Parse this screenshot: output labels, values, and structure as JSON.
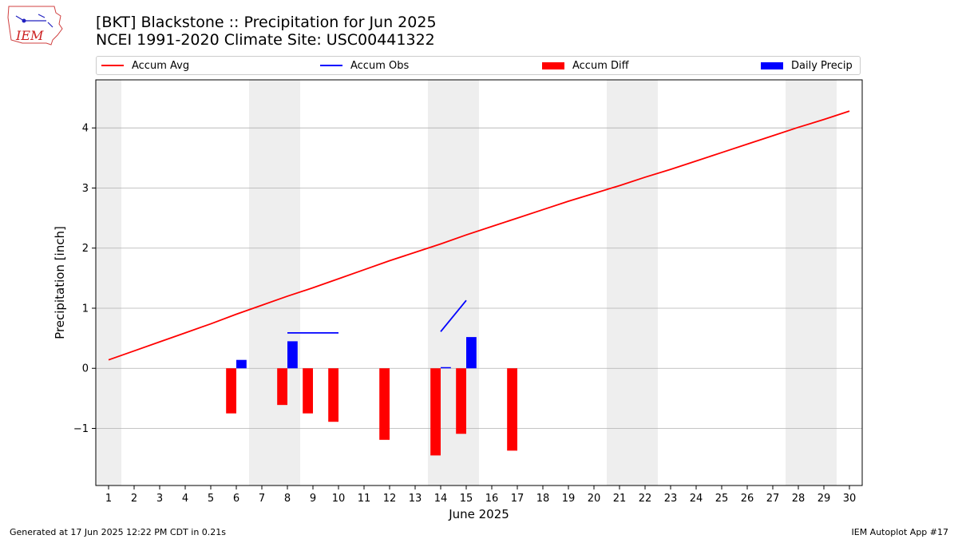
{
  "logo": {
    "text": "IEM"
  },
  "header": {
    "title_line1": "[BKT] Blackstone :: Precipitation for Jun 2025",
    "title_line2": "NCEI 1991-2020 Climate Site: USC00441322"
  },
  "legend": {
    "items": [
      {
        "label": "Accum Avg",
        "kind": "line",
        "color": "#ff0000"
      },
      {
        "label": "Accum Obs",
        "kind": "line",
        "color": "#0000ff"
      },
      {
        "label": "Accum Diff",
        "kind": "box",
        "color": "#ff0000"
      },
      {
        "label": "Daily Precip",
        "kind": "box",
        "color": "#0000ff"
      }
    ]
  },
  "footer": {
    "left": "Generated at 17 Jun 2025 12:22 PM CDT in 0.21s",
    "right": "IEM Autoplot App #17"
  },
  "chart_data": {
    "type": "bar",
    "title": "[BKT] Blackstone :: Precipitation for Jun 2025",
    "subtitle": "NCEI 1991-2020 Climate Site: USC00441322",
    "xlabel": "June 2025",
    "ylabel": "Precipitation [inch]",
    "xlim": [
      0.5,
      30.5
    ],
    "ylim": [
      -1.95,
      4.8
    ],
    "yticks": [
      -1,
      0,
      1,
      2,
      3,
      4
    ],
    "ytick_labels": [
      "−1",
      "0",
      "1",
      "2",
      "3",
      "4"
    ],
    "xticks": [
      1,
      2,
      3,
      4,
      5,
      6,
      7,
      8,
      9,
      10,
      11,
      12,
      13,
      14,
      15,
      16,
      17,
      18,
      19,
      20,
      21,
      22,
      23,
      24,
      25,
      26,
      27,
      28,
      29,
      30
    ],
    "grid": "horizontal",
    "legend_position": "top",
    "weekend_shading": [
      [
        0.5,
        1.5
      ],
      [
        6.5,
        8.5
      ],
      [
        13.5,
        15.5
      ],
      [
        20.5,
        22.5
      ],
      [
        27.5,
        29.5
      ]
    ],
    "colors": {
      "avg": "#ff0000",
      "obs": "#0000ff",
      "diff": "#ff0000",
      "precip": "#0000ff",
      "shade": "#eeeeee",
      "grid": "#b0b0b0"
    },
    "series": [
      {
        "name": "Accum Avg",
        "type": "line",
        "x": [
          1,
          2,
          3,
          4,
          5,
          6,
          7,
          8,
          9,
          10,
          11,
          12,
          13,
          14,
          15,
          16,
          17,
          18,
          19,
          20,
          21,
          22,
          23,
          24,
          25,
          26,
          27,
          28,
          29,
          30
        ],
        "values": [
          0.14,
          0.29,
          0.44,
          0.59,
          0.74,
          0.9,
          1.05,
          1.2,
          1.34,
          1.49,
          1.64,
          1.79,
          1.93,
          2.07,
          2.22,
          2.36,
          2.5,
          2.64,
          2.78,
          2.91,
          3.04,
          3.18,
          3.31,
          3.45,
          3.59,
          3.73,
          3.87,
          4.01,
          4.14,
          4.28
        ]
      },
      {
        "name": "Accum Obs",
        "type": "line",
        "segments": [
          {
            "x": [
              8,
              9,
              10
            ],
            "values": [
              0.59,
              0.59,
              0.59
            ]
          },
          {
            "x": [
              14,
              15
            ],
            "values": [
              0.61,
              1.13
            ]
          }
        ]
      },
      {
        "name": "Accum Diff",
        "type": "bar",
        "x": [
          6,
          8,
          9,
          10,
          12,
          14,
          15,
          17
        ],
        "values": [
          -0.75,
          -0.61,
          -0.75,
          -0.89,
          -1.19,
          -1.45,
          -1.09,
          -1.37
        ]
      },
      {
        "name": "Daily Precip",
        "type": "bar",
        "x": [
          6,
          8,
          14,
          15
        ],
        "values": [
          0.14,
          0.45,
          0.02,
          0.52
        ]
      }
    ]
  }
}
